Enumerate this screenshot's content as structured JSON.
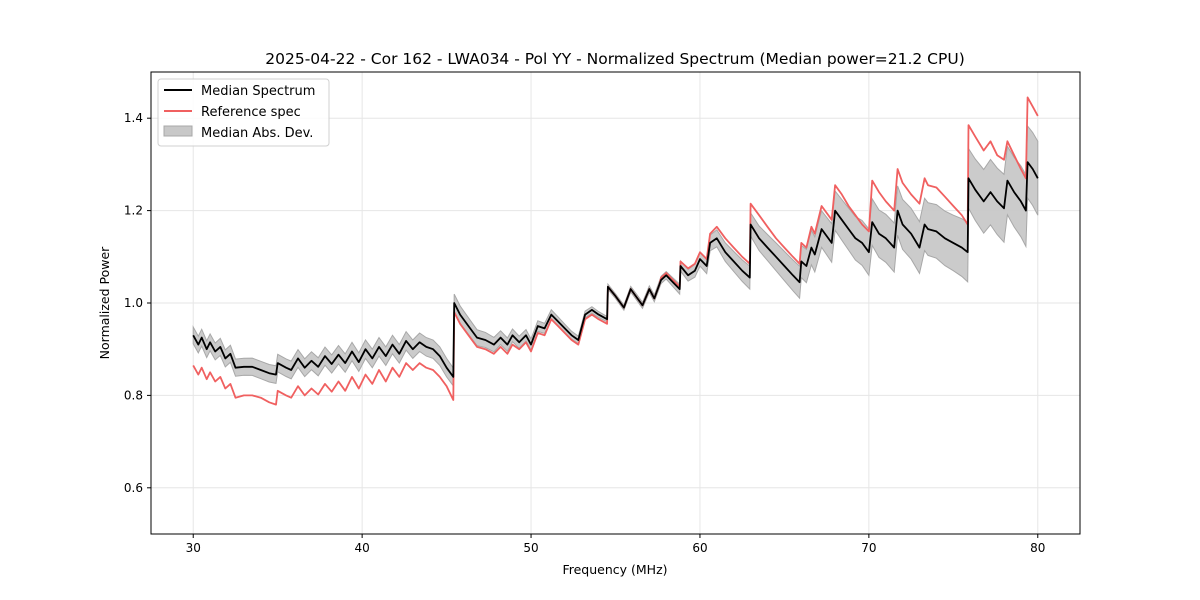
{
  "chart_data": {
    "type": "line",
    "title": "2025-04-22 - Cor 162 - LWA034 - Pol YY - Normalized Spectrum (Median power=21.2 CPU)",
    "xlabel": "Frequency (MHz)",
    "ylabel": "Normalized Power",
    "xlim": [
      27.5,
      82.5
    ],
    "ylim": [
      0.5,
      1.5
    ],
    "xticks": [
      30,
      40,
      50,
      60,
      70,
      80
    ],
    "xtick_labels": [
      "30",
      "40",
      "50",
      "60",
      "70",
      "80"
    ],
    "yticks": [
      0.6,
      0.8,
      1.0,
      1.2,
      1.4
    ],
    "ytick_labels": [
      "0.6",
      "0.8",
      "1.0",
      "1.2",
      "1.4"
    ],
    "grid": true,
    "legend_position": "top-left",
    "legend": [
      "Median Spectrum",
      "Reference spec",
      "Median Abs. Dev."
    ],
    "colors": {
      "median": "#000000",
      "reference": "#f06060",
      "mad_fill": "#c8c8c8",
      "mad_edge": "#a8a8a8",
      "grid": "#e6e6e6"
    },
    "series": [
      {
        "name": "Median Spectrum",
        "x": [
          30.0,
          30.3,
          30.5,
          30.8,
          31.0,
          31.3,
          31.6,
          31.9,
          32.2,
          32.5,
          33.0,
          33.5,
          34.0,
          34.5,
          34.9,
          35.0,
          35.5,
          35.8,
          36.2,
          36.6,
          37.0,
          37.4,
          37.8,
          38.2,
          38.6,
          39.0,
          39.4,
          39.8,
          40.2,
          40.6,
          41.0,
          41.4,
          41.8,
          42.2,
          42.6,
          43.0,
          43.4,
          43.8,
          44.2,
          44.6,
          45.0,
          45.4,
          45.45,
          45.8,
          46.3,
          46.8,
          47.3,
          47.8,
          48.2,
          48.6,
          48.9,
          49.3,
          49.7,
          50.0,
          50.4,
          50.8,
          51.2,
          51.6,
          52.0,
          52.4,
          52.8,
          53.2,
          53.6,
          54.0,
          54.5,
          54.55,
          55.0,
          55.5,
          55.9,
          56.2,
          56.6,
          57.0,
          57.3,
          57.6,
          57.7,
          58.0,
          58.4,
          58.8,
          58.85,
          59.3,
          59.7,
          60.0,
          60.4,
          60.6,
          61.0,
          61.5,
          62.0,
          62.5,
          62.95,
          63.0,
          63.5,
          64.0,
          64.5,
          65.0,
          65.5,
          65.9,
          66.0,
          66.3,
          66.6,
          66.8,
          67.2,
          67.8,
          68.0,
          68.4,
          68.8,
          69.2,
          69.6,
          70.0,
          70.2,
          70.6,
          71.0,
          71.5,
          71.7,
          72.0,
          72.5,
          73.0,
          73.3,
          73.5,
          74.0,
          74.5,
          75.0,
          75.5,
          75.85,
          75.9,
          76.3,
          76.8,
          77.2,
          77.6,
          78.0,
          78.2,
          78.6,
          79.0,
          79.3,
          79.4,
          79.7,
          80.0
        ],
        "values": [
          0.93,
          0.91,
          0.925,
          0.9,
          0.915,
          0.895,
          0.905,
          0.88,
          0.89,
          0.86,
          0.862,
          0.862,
          0.855,
          0.848,
          0.845,
          0.87,
          0.86,
          0.855,
          0.88,
          0.86,
          0.875,
          0.862,
          0.885,
          0.868,
          0.888,
          0.87,
          0.895,
          0.872,
          0.9,
          0.88,
          0.905,
          0.885,
          0.91,
          0.89,
          0.918,
          0.9,
          0.915,
          0.905,
          0.9,
          0.885,
          0.86,
          0.84,
          1.0,
          0.975,
          0.95,
          0.925,
          0.92,
          0.91,
          0.925,
          0.91,
          0.93,
          0.915,
          0.93,
          0.91,
          0.95,
          0.945,
          0.975,
          0.96,
          0.945,
          0.93,
          0.92,
          0.975,
          0.985,
          0.975,
          0.965,
          1.035,
          1.015,
          0.99,
          1.03,
          1.015,
          0.995,
          1.03,
          1.01,
          1.04,
          1.05,
          1.06,
          1.045,
          1.03,
          1.08,
          1.06,
          1.07,
          1.095,
          1.08,
          1.13,
          1.14,
          1.11,
          1.09,
          1.07,
          1.055,
          1.17,
          1.14,
          1.12,
          1.1,
          1.08,
          1.06,
          1.045,
          1.09,
          1.08,
          1.12,
          1.105,
          1.16,
          1.13,
          1.2,
          1.18,
          1.16,
          1.14,
          1.13,
          1.11,
          1.175,
          1.15,
          1.14,
          1.12,
          1.2,
          1.17,
          1.15,
          1.12,
          1.17,
          1.16,
          1.155,
          1.14,
          1.13,
          1.12,
          1.11,
          1.27,
          1.245,
          1.22,
          1.24,
          1.22,
          1.205,
          1.265,
          1.24,
          1.22,
          1.2,
          1.305,
          1.29,
          1.27
        ]
      },
      {
        "name": "Reference spec",
        "x": [
          30.0,
          30.3,
          30.5,
          30.8,
          31.0,
          31.3,
          31.6,
          31.9,
          32.2,
          32.5,
          33.0,
          33.5,
          34.0,
          34.5,
          34.9,
          35.0,
          35.5,
          35.8,
          36.2,
          36.6,
          37.0,
          37.4,
          37.8,
          38.2,
          38.6,
          39.0,
          39.4,
          39.8,
          40.2,
          40.6,
          41.0,
          41.4,
          41.8,
          42.2,
          42.6,
          43.0,
          43.4,
          43.8,
          44.2,
          44.6,
          45.0,
          45.4,
          45.45,
          45.8,
          46.3,
          46.8,
          47.3,
          47.8,
          48.2,
          48.6,
          48.9,
          49.3,
          49.7,
          50.0,
          50.4,
          50.8,
          51.2,
          51.6,
          52.0,
          52.4,
          52.8,
          53.2,
          53.6,
          54.0,
          54.5,
          54.55,
          55.0,
          55.5,
          55.9,
          56.2,
          56.6,
          57.0,
          57.3,
          57.6,
          57.7,
          58.0,
          58.4,
          58.8,
          58.85,
          59.3,
          59.7,
          60.0,
          60.4,
          60.6,
          61.0,
          61.5,
          62.0,
          62.5,
          62.95,
          63.0,
          63.5,
          64.0,
          64.5,
          65.0,
          65.5,
          65.9,
          66.0,
          66.3,
          66.6,
          66.8,
          67.2,
          67.8,
          68.0,
          68.4,
          68.8,
          69.2,
          69.6,
          70.0,
          70.2,
          70.6,
          71.0,
          71.5,
          71.7,
          72.0,
          72.5,
          73.0,
          73.3,
          73.5,
          74.0,
          74.5,
          75.0,
          75.5,
          75.85,
          75.9,
          76.3,
          76.8,
          77.2,
          77.6,
          78.0,
          78.2,
          78.6,
          79.0,
          79.3,
          79.4,
          79.7,
          80.0
        ],
        "values": [
          0.865,
          0.845,
          0.86,
          0.835,
          0.85,
          0.83,
          0.84,
          0.815,
          0.825,
          0.795,
          0.8,
          0.8,
          0.795,
          0.785,
          0.78,
          0.81,
          0.8,
          0.795,
          0.82,
          0.8,
          0.815,
          0.802,
          0.825,
          0.808,
          0.83,
          0.81,
          0.84,
          0.815,
          0.845,
          0.825,
          0.855,
          0.83,
          0.86,
          0.84,
          0.87,
          0.855,
          0.87,
          0.86,
          0.855,
          0.84,
          0.82,
          0.79,
          0.98,
          0.955,
          0.93,
          0.905,
          0.9,
          0.89,
          0.905,
          0.89,
          0.91,
          0.9,
          0.915,
          0.895,
          0.935,
          0.93,
          0.965,
          0.95,
          0.935,
          0.92,
          0.91,
          0.965,
          0.975,
          0.965,
          0.955,
          1.035,
          1.015,
          0.99,
          1.03,
          1.015,
          0.995,
          1.03,
          1.01,
          1.04,
          1.055,
          1.065,
          1.05,
          1.035,
          1.09,
          1.075,
          1.085,
          1.11,
          1.095,
          1.15,
          1.165,
          1.14,
          1.12,
          1.1,
          1.085,
          1.215,
          1.19,
          1.165,
          1.14,
          1.12,
          1.1,
          1.085,
          1.13,
          1.12,
          1.165,
          1.15,
          1.21,
          1.18,
          1.255,
          1.235,
          1.21,
          1.19,
          1.17,
          1.155,
          1.265,
          1.24,
          1.22,
          1.2,
          1.29,
          1.26,
          1.235,
          1.215,
          1.27,
          1.255,
          1.25,
          1.23,
          1.21,
          1.19,
          1.17,
          1.385,
          1.36,
          1.33,
          1.35,
          1.32,
          1.31,
          1.35,
          1.32,
          1.29,
          1.27,
          1.445,
          1.425,
          1.405
        ]
      },
      {
        "name": "Median Abs. Dev.",
        "type": "band",
        "x": [
          30.0,
          40.0,
          45.0,
          50.0,
          55.0,
          58.0,
          60.0,
          63.0,
          66.0,
          70.0,
          75.0,
          77.0,
          80.0
        ],
        "half_width": [
          0.018,
          0.02,
          0.02,
          0.012,
          0.005,
          0.008,
          0.015,
          0.025,
          0.035,
          0.05,
          0.06,
          0.07,
          0.08
        ]
      }
    ]
  }
}
